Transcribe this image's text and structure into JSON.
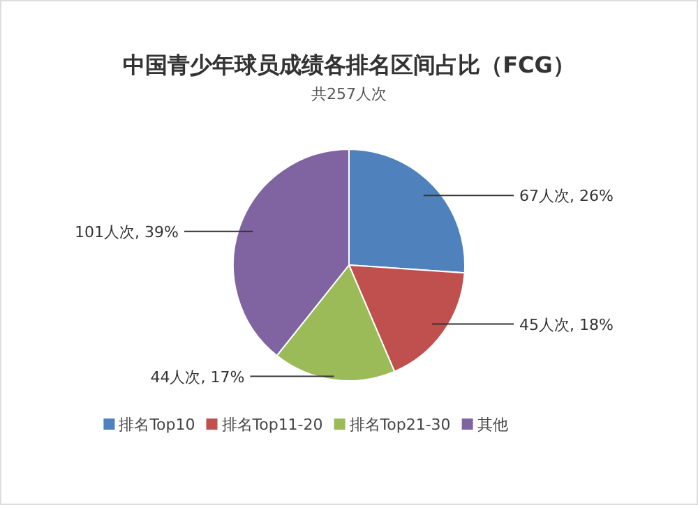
{
  "chart_data": {
    "type": "pie",
    "title": "中国青少年球员成绩各排名区间占比（FCG）",
    "subtitle": "共257人次",
    "categories": [
      "排名Top10",
      "排名Top11-20",
      "排名Top21-30",
      "其他"
    ],
    "values": [
      67,
      45,
      44,
      101
    ],
    "colors": [
      "#4f81bd",
      "#c0504d",
      "#9bbb59",
      "#8064a2"
    ],
    "value_labels": [
      "67人次, 26%",
      "45人次, 18%",
      "44人次, 17%",
      "101人次, 39%"
    ],
    "legend": "bottom"
  }
}
